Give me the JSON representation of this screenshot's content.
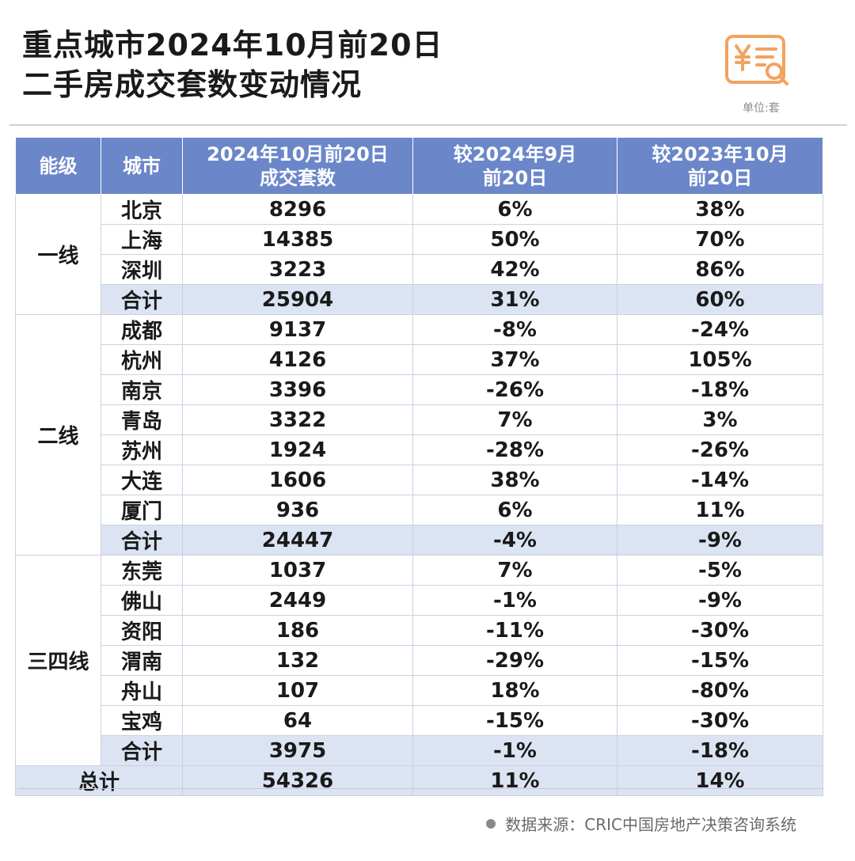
{
  "title_line1": "重点城市2024年10月前20日",
  "title_line2": "二手房成交套数变动情况",
  "unit": "单位:套",
  "logo_icon": "yuan-receipt-search-icon",
  "accent_color": "#f2a35e",
  "header_color": "#6b87c9",
  "subtotal_color": "#dce3f2",
  "source_text": "数据来源：CRIC中国房地产决策咨询系统",
  "columns": [
    "能级",
    "城市",
    "2024年10月前20日成交套数",
    "较2024年9月前20日",
    "较2023年10月前20日"
  ],
  "column_lines": [
    [
      "能级"
    ],
    [
      "城市"
    ],
    [
      "2024年10月前20日",
      "成交套数"
    ],
    [
      "较2024年9月",
      "前20日"
    ],
    [
      "较2023年10月",
      "前20日"
    ]
  ],
  "chart_data": {
    "type": "table",
    "groups": [
      {
        "tier": "一线",
        "rows": [
          {
            "city": "北京",
            "count": "8296",
            "mom": "6%",
            "yoy": "38%"
          },
          {
            "city": "上海",
            "count": "14385",
            "mom": "50%",
            "yoy": "70%"
          },
          {
            "city": "深圳",
            "count": "3223",
            "mom": "42%",
            "yoy": "86%"
          }
        ],
        "subtotal": {
          "city": "合计",
          "count": "25904",
          "mom": "31%",
          "yoy": "60%"
        }
      },
      {
        "tier": "二线",
        "rows": [
          {
            "city": "成都",
            "count": "9137",
            "mom": "-8%",
            "yoy": "-24%"
          },
          {
            "city": "杭州",
            "count": "4126",
            "mom": "37%",
            "yoy": "105%"
          },
          {
            "city": "南京",
            "count": "3396",
            "mom": "-26%",
            "yoy": "-18%"
          },
          {
            "city": "青岛",
            "count": "3322",
            "mom": "7%",
            "yoy": "3%"
          },
          {
            "city": "苏州",
            "count": "1924",
            "mom": "-28%",
            "yoy": "-26%"
          },
          {
            "city": "大连",
            "count": "1606",
            "mom": "38%",
            "yoy": "-14%"
          },
          {
            "city": "厦门",
            "count": "936",
            "mom": "6%",
            "yoy": "11%"
          }
        ],
        "subtotal": {
          "city": "合计",
          "count": "24447",
          "mom": "-4%",
          "yoy": "-9%"
        }
      },
      {
        "tier": "三四线",
        "rows": [
          {
            "city": "东莞",
            "count": "1037",
            "mom": "7%",
            "yoy": "-5%"
          },
          {
            "city": "佛山",
            "count": "2449",
            "mom": "-1%",
            "yoy": "-9%"
          },
          {
            "city": "资阳",
            "count": "186",
            "mom": "-11%",
            "yoy": "-30%"
          },
          {
            "city": "渭南",
            "count": "132",
            "mom": "-29%",
            "yoy": "-15%"
          },
          {
            "city": "舟山",
            "count": "107",
            "mom": "18%",
            "yoy": "-80%"
          },
          {
            "city": "宝鸡",
            "count": "64",
            "mom": "-15%",
            "yoy": "-30%"
          }
        ],
        "subtotal": {
          "city": "合计",
          "count": "3975",
          "mom": "-1%",
          "yoy": "-18%"
        }
      }
    ],
    "total": {
      "label": "总计",
      "count": "54326",
      "mom": "11%",
      "yoy": "14%"
    }
  }
}
